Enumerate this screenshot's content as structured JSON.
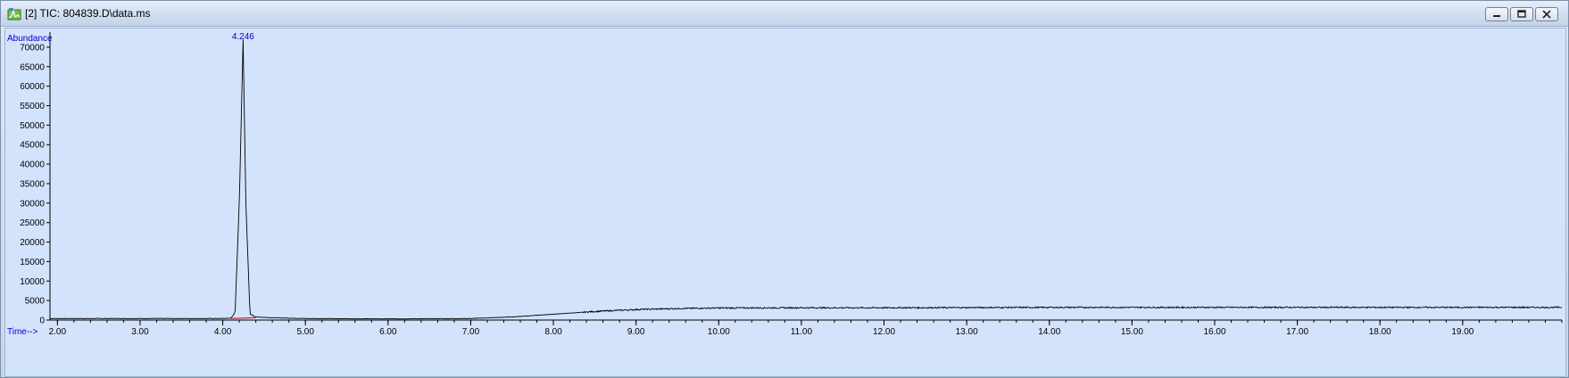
{
  "window": {
    "title": "[2] TIC: 804839.D\\data.ms",
    "icon": "chromatogram-app-icon",
    "controls": [
      "minimize-icon",
      "restore-icon",
      "close-icon"
    ]
  },
  "colors": {
    "plot_background": "#d4e3fc",
    "trace": "#000000",
    "axis_labels": "#0000cc",
    "peak_label": "#0000cc",
    "baseline_marker": "#cc0000"
  },
  "chart_data": {
    "type": "line",
    "title": "",
    "ylabel": "Abundance",
    "xlabel": "Time-->",
    "xlim": [
      1.91,
      20.2
    ],
    "ylim": [
      0,
      72500
    ],
    "x_ticks": [
      "2.00",
      "3.00",
      "4.00",
      "5.00",
      "6.00",
      "7.00",
      "8.00",
      "9.00",
      "10.00",
      "11.00",
      "12.00",
      "13.00",
      "14.00",
      "15.00",
      "16.00",
      "17.00",
      "18.00",
      "19.00"
    ],
    "y_ticks": [
      "0",
      "5000",
      "10000",
      "15000",
      "20000",
      "25000",
      "30000",
      "35000",
      "40000",
      "45000",
      "50000",
      "55000",
      "60000",
      "65000",
      "70000"
    ],
    "grid": false,
    "peak_label": "4.246",
    "series": [
      {
        "x": [
          1.91,
          4.0,
          4.1,
          4.15,
          4.2,
          4.246,
          4.28,
          4.33,
          4.4,
          4.6,
          5.0,
          6.0,
          7.0,
          7.5,
          8.0,
          8.5,
          9.0,
          9.5,
          10.0,
          11.0,
          12.0,
          13.0,
          14.0,
          15.0,
          16.0,
          17.0,
          18.0,
          19.0,
          20.2
        ],
        "y": [
          400,
          400,
          500,
          2000,
          30000,
          72000,
          30000,
          1500,
          800,
          600,
          400,
          300,
          400,
          800,
          1500,
          2200,
          2700,
          2950,
          3100,
          3150,
          3150,
          3200,
          3250,
          3250,
          3250,
          3250,
          3250,
          3250,
          3250
        ]
      }
    ],
    "baseline_segment": {
      "x": [
        4.1,
        4.4
      ],
      "y": [
        400,
        600
      ]
    }
  }
}
